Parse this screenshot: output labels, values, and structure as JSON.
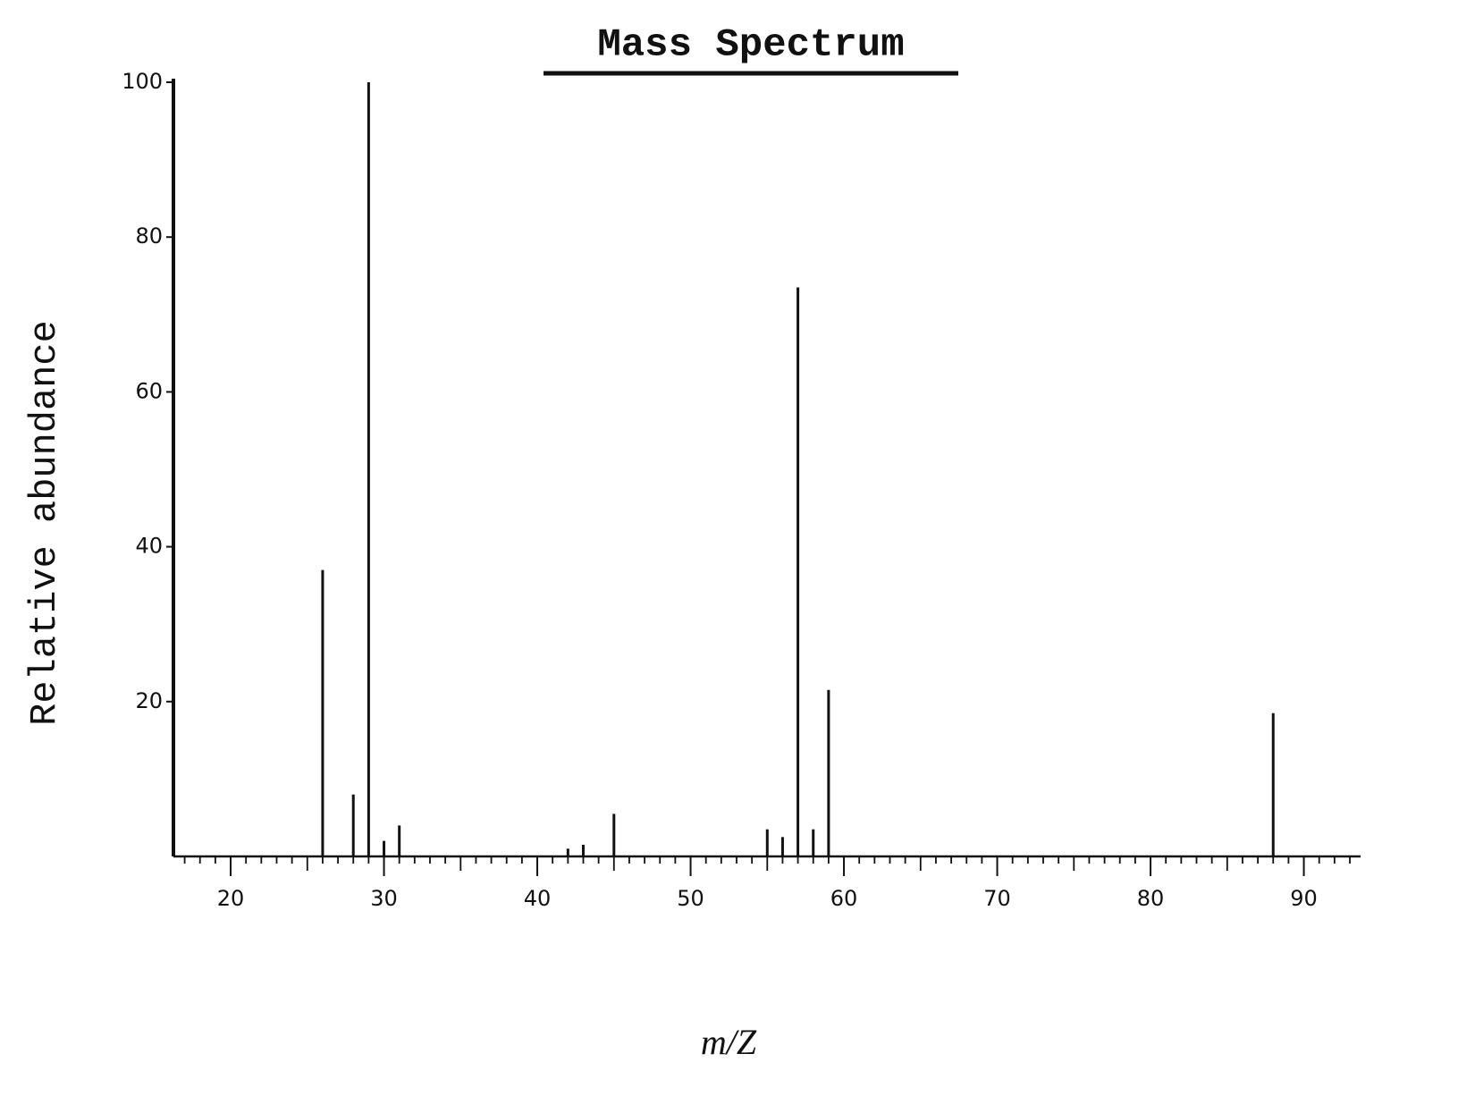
{
  "chart_data": {
    "type": "bar",
    "title": "Mass Spectrum",
    "x_label": "m/Z",
    "y_label": "Relative abundance",
    "x": [
      26,
      28,
      29,
      30,
      31,
      42,
      43,
      45,
      55,
      56,
      57,
      58,
      59,
      88
    ],
    "values": [
      37,
      8,
      100,
      2,
      4,
      1,
      1.5,
      5.5,
      3.5,
      2.5,
      73.5,
      3.5,
      21.5,
      18.5
    ],
    "color": "#111111",
    "xlim": [
      16.5,
      93.7
    ],
    "ylim": [
      0,
      100
    ],
    "xticks": [
      20,
      30,
      40,
      50,
      60,
      70,
      80,
      90
    ],
    "xminorticks": [
      17,
      18,
      19,
      21,
      22,
      23,
      24,
      25,
      26,
      27,
      28,
      29,
      31,
      32,
      33,
      34,
      35,
      36,
      37,
      38,
      39,
      41,
      42,
      43,
      44,
      45,
      46,
      47,
      48,
      49,
      51,
      52,
      53,
      54,
      55,
      56,
      57,
      58,
      59,
      61,
      62,
      63,
      64,
      65,
      66,
      67,
      68,
      69,
      71,
      72,
      73,
      74,
      75,
      76,
      77,
      78,
      79,
      81,
      82,
      83,
      84,
      85,
      86,
      87,
      88,
      89,
      91,
      92,
      93
    ],
    "yticks": [
      20,
      40,
      60,
      80,
      100
    ],
    "grid": false
  }
}
